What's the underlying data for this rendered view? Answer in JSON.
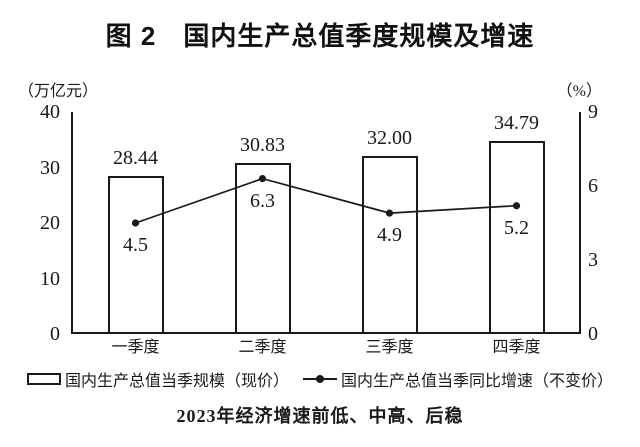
{
  "title": "图 2　国内生产总值季度规模及增速",
  "caption": "2023年经济增速前低、中高、后稳",
  "axes": {
    "left_unit": "（万亿元）",
    "right_unit": "（%）"
  },
  "colors": {
    "ink": "#1a1a1a",
    "background": "#ffffff",
    "bar_fill": "#ffffff"
  },
  "chart_data": {
    "type": "bar+line",
    "title": "图 2　国内生产总值季度规模及增速",
    "categories": [
      "一季度",
      "二季度",
      "三季度",
      "四季度"
    ],
    "series": [
      {
        "name": "国内生产总值当季规模（现价）",
        "type": "bar",
        "axis": "left",
        "values": [
          28.44,
          30.83,
          32.0,
          34.79
        ],
        "labels": [
          "28.44",
          "30.83",
          "32.00",
          "34.79"
        ]
      },
      {
        "name": "国内生产总值当季同比增速（不变价）",
        "type": "line",
        "axis": "right",
        "values": [
          4.5,
          6.3,
          4.9,
          5.2
        ],
        "labels": [
          "4.5",
          "6.3",
          "4.9",
          "5.2"
        ]
      }
    ],
    "left_axis": {
      "unit": "（万亿元）",
      "min": 0,
      "max": 40,
      "ticks": [
        "0",
        "10",
        "20",
        "30",
        "40"
      ]
    },
    "right_axis": {
      "unit": "（%）",
      "min": 0,
      "max": 9,
      "ticks": [
        "0",
        "3",
        "6",
        "9"
      ]
    },
    "grid": false,
    "legend_position": "bottom",
    "footnote": "2023年经济增速前低、中高、后稳"
  }
}
